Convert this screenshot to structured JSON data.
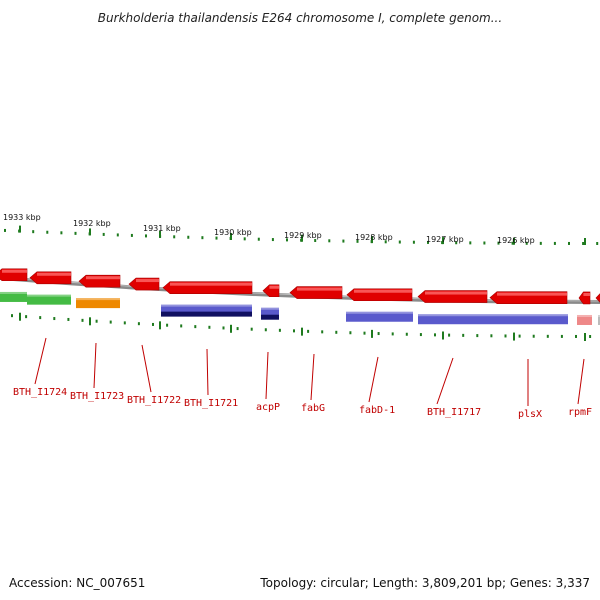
{
  "title": "Burkholderia thailandensis E264 chromosome I, complete genom...",
  "footer": {
    "accession": "Accession: NC_007651",
    "summary": "Topology: circular; Length: 3,809,201 bp; Genes: 3,337"
  },
  "colors": {
    "forward_cds": "#e00000",
    "gene_label": "#c00000",
    "backbone": "#8a8a8a",
    "tick": "#1e7a1e",
    "cog_green": "#44bb44",
    "cog_orange": "#ee8800",
    "cog_blue": "#5a5acc",
    "cog_navy": "#101060",
    "cog_pink": "#ee8888"
  },
  "kbp_ticks": [
    "1933 kbp",
    "1932 kbp",
    "1931 kbp",
    "1930 kbp",
    "1929 kbp",
    "1928 kbp",
    "1927 kbp",
    "1926 kbp"
  ],
  "genes": [
    {
      "label": "BTH_I1724",
      "cog": "green"
    },
    {
      "label": "BTH_I1723",
      "cog": "orange"
    },
    {
      "label": "BTH_I1722",
      "cog": "none"
    },
    {
      "label": "BTH_I1721",
      "cog": "navy"
    },
    {
      "label": "acpP",
      "cog": "navy"
    },
    {
      "label": "fabG",
      "cog": "none"
    },
    {
      "label": "fabD-1",
      "cog": "blue"
    },
    {
      "label": "BTH_I1717",
      "cog": "blue"
    },
    {
      "label": "plsX",
      "cog": "blue"
    },
    {
      "label": "rpmF",
      "cog": "pink"
    }
  ]
}
